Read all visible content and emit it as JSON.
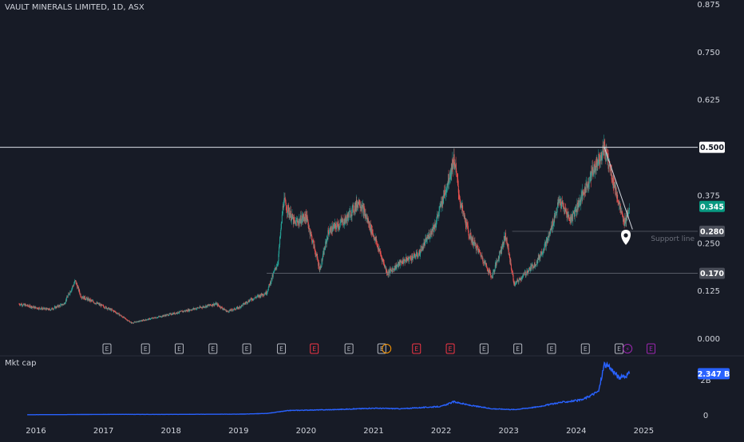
{
  "header": {
    "title": "VAULT MINERALS LIMITED, 1D, ASX"
  },
  "subpanel": {
    "label": "Mkt cap"
  },
  "colors": {
    "background": "#171b26",
    "up": "#26a69a",
    "down": "#ef5350",
    "line": "#2962ff",
    "badge_price": "#089981",
    "badge_mktcap": "#2962ff",
    "event_earnings": "#b2b5be",
    "event_dividend": "#f23645",
    "event_split": "#ff9800",
    "event_purple": "#9c27b0"
  },
  "chart_data": [
    {
      "type": "candlestick",
      "title": "VAULT MINERALS LIMITED, 1D, ASX",
      "x_ticks": [
        "2016",
        "2017",
        "2018",
        "2019",
        "2020",
        "2021",
        "2022",
        "2023",
        "2024",
        "2025"
      ],
      "y_ticks": [
        "0.875",
        "0.750",
        "0.625",
        "0.375",
        "0.250",
        "0.125",
        "0.000"
      ],
      "ylim": [
        0,
        0.9
      ],
      "price_path": [
        [
          "2015-10-01",
          0.09
        ],
        [
          "2016-01-01",
          0.08
        ],
        [
          "2016-03-15",
          0.075
        ],
        [
          "2016-06-01",
          0.09
        ],
        [
          "2016-08-01",
          0.15
        ],
        [
          "2016-09-01",
          0.11
        ],
        [
          "2016-12-01",
          0.09
        ],
        [
          "2017-03-01",
          0.07
        ],
        [
          "2017-06-01",
          0.04
        ],
        [
          "2017-09-01",
          0.05
        ],
        [
          "2017-12-01",
          0.06
        ],
        [
          "2018-03-01",
          0.07
        ],
        [
          "2018-06-01",
          0.08
        ],
        [
          "2018-09-01",
          0.09
        ],
        [
          "2018-11-01",
          0.07
        ],
        [
          "2019-01-01",
          0.08
        ],
        [
          "2019-03-01",
          0.1
        ],
        [
          "2019-06-01",
          0.12
        ],
        [
          "2019-08-01",
          0.2
        ],
        [
          "2019-09-01",
          0.36
        ],
        [
          "2019-11-01",
          0.3
        ],
        [
          "2020-01-01",
          0.32
        ],
        [
          "2020-03-15",
          0.18
        ],
        [
          "2020-05-01",
          0.28
        ],
        [
          "2020-08-01",
          0.31
        ],
        [
          "2020-10-15",
          0.36
        ],
        [
          "2021-01-01",
          0.27
        ],
        [
          "2021-03-15",
          0.17
        ],
        [
          "2021-06-01",
          0.2
        ],
        [
          "2021-09-01",
          0.22
        ],
        [
          "2021-12-01",
          0.3
        ],
        [
          "2022-02-01",
          0.4
        ],
        [
          "2022-03-10",
          0.47
        ],
        [
          "2022-04-15",
          0.35
        ],
        [
          "2022-06-01",
          0.27
        ],
        [
          "2022-08-01",
          0.22
        ],
        [
          "2022-10-01",
          0.16
        ],
        [
          "2022-12-15",
          0.27
        ],
        [
          "2023-02-01",
          0.14
        ],
        [
          "2023-04-01",
          0.17
        ],
        [
          "2023-06-01",
          0.2
        ],
        [
          "2023-08-01",
          0.26
        ],
        [
          "2023-10-01",
          0.36
        ],
        [
          "2023-12-01",
          0.31
        ],
        [
          "2024-02-01",
          0.37
        ],
        [
          "2024-04-01",
          0.44
        ],
        [
          "2024-06-01",
          0.5
        ],
        [
          "2024-07-15",
          0.42
        ],
        [
          "2024-08-15",
          0.36
        ],
        [
          "2024-09-15",
          0.3
        ],
        [
          "2024-10-15",
          0.345
        ]
      ],
      "horizontal_lines": [
        {
          "value": 0.5,
          "label": "0.500"
        },
        {
          "value": 0.28,
          "label": "0.280",
          "text": "Support line",
          "from": "2023-01-20"
        },
        {
          "value": 0.17,
          "label": "0.170",
          "from": "2019-06-01"
        }
      ],
      "trend_line": {
        "from": [
          "2024-06-01",
          0.5
        ],
        "to": [
          "2024-11-01",
          0.285
        ]
      },
      "current_price": {
        "value": 0.345,
        "label": "0.345"
      },
      "event_markers": [
        {
          "date": "2017-01-20",
          "glyph": "E",
          "kind": "earnings"
        },
        {
          "date": "2017-08-15",
          "glyph": "E",
          "kind": "earnings"
        },
        {
          "date": "2018-02-15",
          "glyph": "E",
          "kind": "earnings"
        },
        {
          "date": "2018-08-15",
          "glyph": "E",
          "kind": "earnings"
        },
        {
          "date": "2019-02-15",
          "glyph": "E",
          "kind": "earnings"
        },
        {
          "date": "2019-08-20",
          "glyph": "E",
          "kind": "earnings"
        },
        {
          "date": "2020-02-15",
          "glyph": "E",
          "kind": "dividend"
        },
        {
          "date": "2020-08-20",
          "glyph": "E",
          "kind": "earnings"
        },
        {
          "date": "2021-02-15",
          "glyph": "E",
          "kind": "earnings"
        },
        {
          "date": "2021-03-10",
          "glyph": "",
          "kind": "split"
        },
        {
          "date": "2021-08-20",
          "glyph": "E",
          "kind": "dividend"
        },
        {
          "date": "2022-02-20",
          "glyph": "E",
          "kind": "dividend"
        },
        {
          "date": "2022-08-20",
          "glyph": "E",
          "kind": "earnings"
        },
        {
          "date": "2023-02-20",
          "glyph": "E",
          "kind": "earnings"
        },
        {
          "date": "2023-08-20",
          "glyph": "E",
          "kind": "earnings"
        },
        {
          "date": "2024-02-20",
          "glyph": "E",
          "kind": "earnings"
        },
        {
          "date": "2024-08-20",
          "glyph": "E",
          "kind": "earnings"
        },
        {
          "date": "2024-10-05",
          "glyph": "⚡",
          "kind": "purple"
        },
        {
          "date": "2025-02-10",
          "glyph": "E",
          "kind": "purple"
        }
      ]
    },
    {
      "type": "line",
      "title": "Mkt cap",
      "y_ticks": [
        "2B",
        "0"
      ],
      "current_value": {
        "label": "2.347 B",
        "value": 2.347
      },
      "path": [
        [
          "2015-11-15",
          0.01
        ],
        [
          "2016-06-01",
          0.015
        ],
        [
          "2017-01-01",
          0.03
        ],
        [
          "2018-01-01",
          0.03
        ],
        [
          "2019-01-01",
          0.04
        ],
        [
          "2019-06-01",
          0.08
        ],
        [
          "2019-10-01",
          0.25
        ],
        [
          "2020-06-01",
          0.3
        ],
        [
          "2021-01-01",
          0.38
        ],
        [
          "2021-06-01",
          0.35
        ],
        [
          "2022-01-01",
          0.48
        ],
        [
          "2022-03-10",
          0.75
        ],
        [
          "2022-06-01",
          0.55
        ],
        [
          "2022-10-01",
          0.35
        ],
        [
          "2023-02-01",
          0.3
        ],
        [
          "2023-06-01",
          0.45
        ],
        [
          "2023-10-01",
          0.7
        ],
        [
          "2024-02-01",
          0.85
        ],
        [
          "2024-05-01",
          1.35
        ],
        [
          "2024-06-01",
          2.9
        ],
        [
          "2024-07-15",
          2.55
        ],
        [
          "2024-08-20",
          2.1
        ],
        [
          "2024-09-20",
          2.2
        ],
        [
          "2024-10-15",
          2.347
        ]
      ]
    }
  ]
}
